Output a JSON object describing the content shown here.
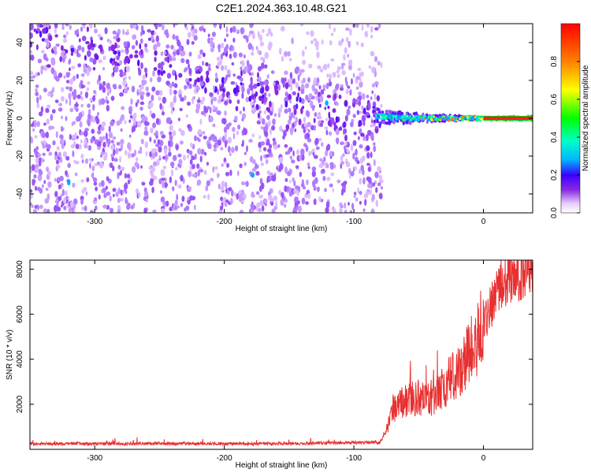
{
  "page_title": "C2E1.2024.363.10.48.G21",
  "chart_data": [
    {
      "type": "heatmap",
      "xlabel": "Height of straight line (km)",
      "ylabel": "Frequency (Hz)",
      "xlim": [
        -350,
        38
      ],
      "ylim": [
        -50,
        50
      ],
      "x_ticks": [
        -300,
        -200,
        -100,
        0
      ],
      "y_ticks": [
        -40,
        -20,
        0,
        20,
        40
      ],
      "colorbar": {
        "label": "Normalized spectral amplitude",
        "range": [
          0,
          1
        ],
        "ticks": [
          0.0,
          0.2,
          0.4,
          0.6,
          0.8
        ],
        "tick_labels": [
          "0.0",
          "0.2",
          "0.4",
          "0.6",
          "0.8"
        ],
        "colors": [
          "#ffffff",
          "#e6ccff",
          "#8a2be2",
          "#3a00ff",
          "#00b4ff",
          "#00ffc8",
          "#00ff00",
          "#ffff00",
          "#ff8000",
          "#ff0000"
        ]
      },
      "features": {
        "noise_region_x": [
          -350,
          -78
        ],
        "carrier_line_frequency": 0,
        "carrier_region_x": [
          -85,
          38
        ]
      },
      "grid": false
    },
    {
      "type": "line",
      "xlabel": "Height of straight line (km)",
      "ylabel": "SNR (10 * v/v)",
      "xlim": [
        -350,
        38
      ],
      "ylim": [
        0,
        8400
      ],
      "x_ticks": [
        -300,
        -200,
        -100,
        0
      ],
      "y_ticks": [
        2000,
        4000,
        6000,
        8000
      ],
      "color": "#e83030",
      "series": [
        {
          "x": [
            -350,
            -300,
            -250,
            -200,
            -150,
            -100,
            -80,
            -75,
            -70,
            -60,
            -50,
            -40,
            -30,
            -20,
            -10,
            0,
            10,
            20,
            30,
            38
          ],
          "values": [
            250,
            250,
            250,
            250,
            250,
            300,
            300,
            800,
            1800,
            2200,
            2300,
            2200,
            2800,
            3500,
            4300,
            5500,
            7000,
            7600,
            7900,
            8100
          ]
        }
      ],
      "grid": false
    }
  ]
}
